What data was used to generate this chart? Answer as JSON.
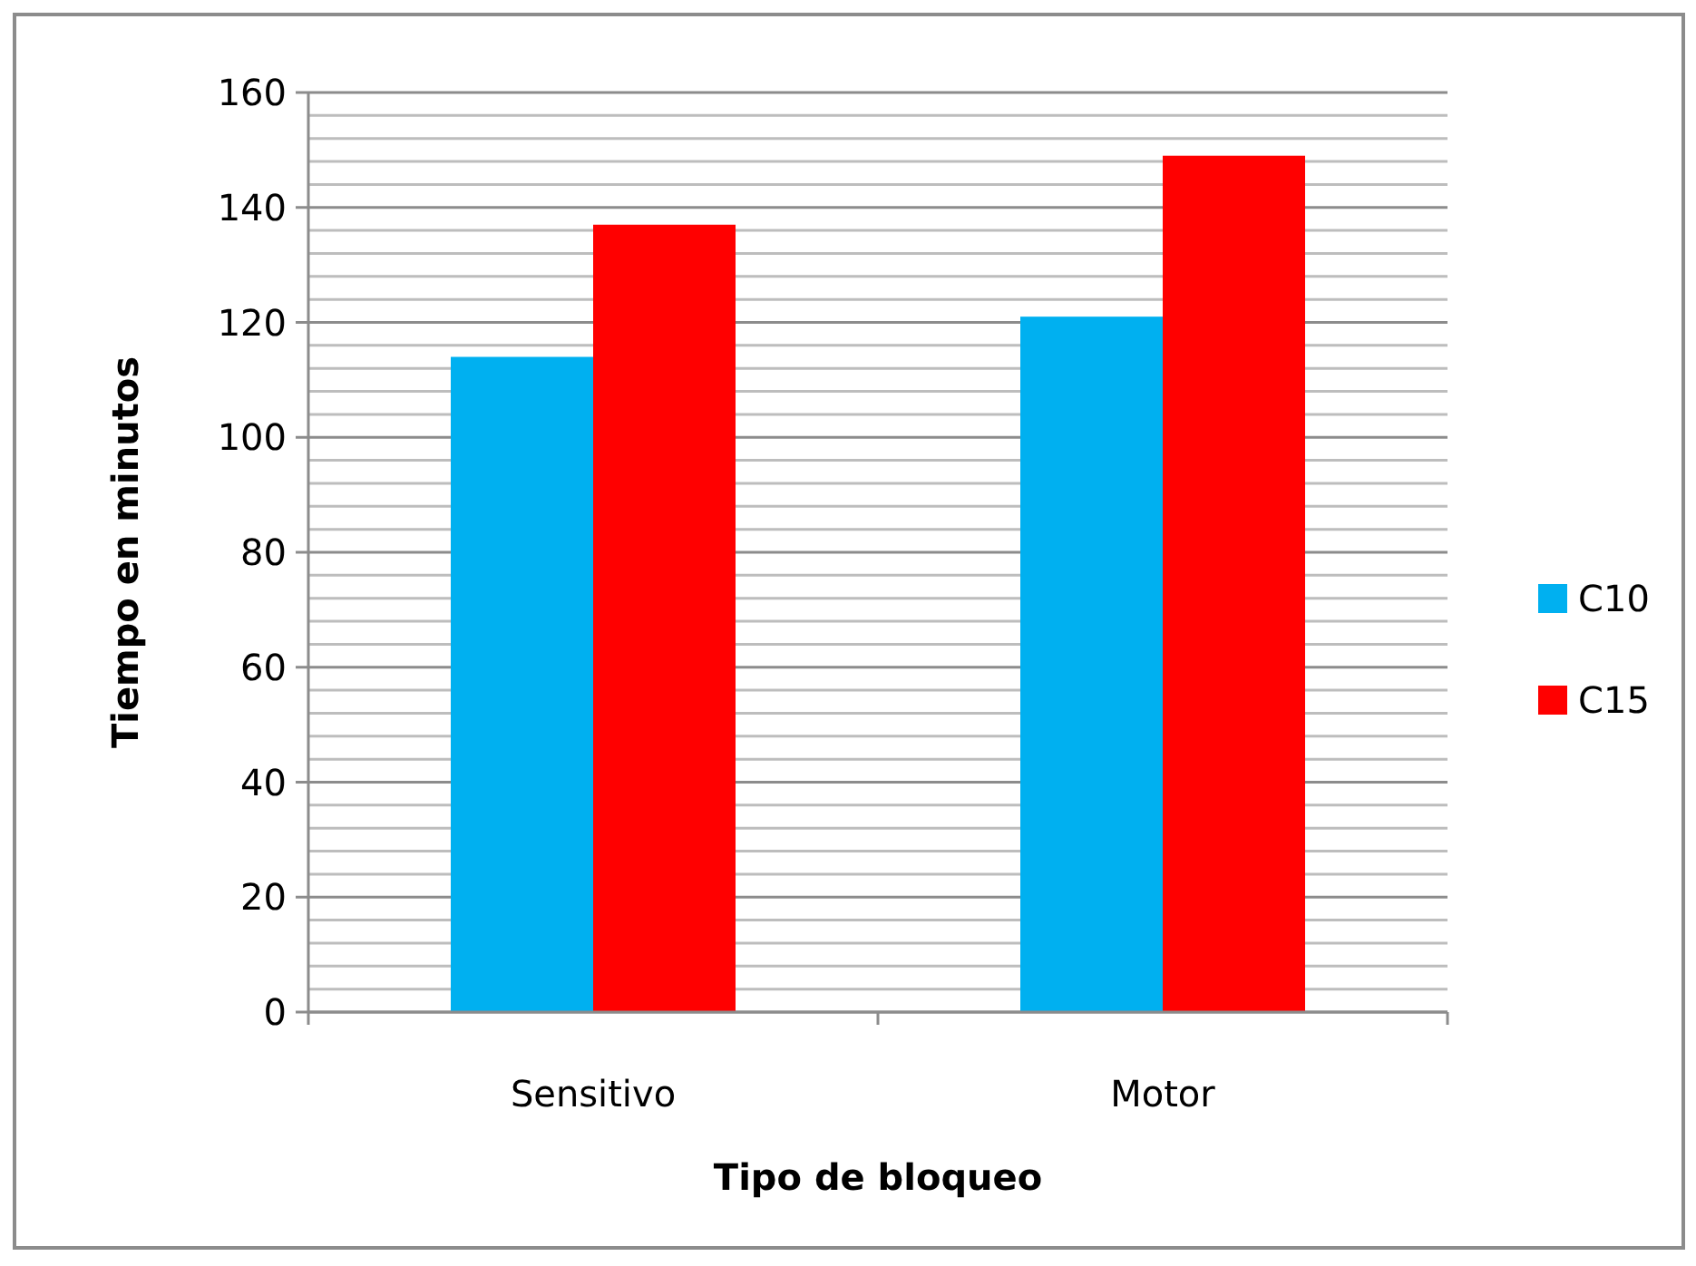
{
  "chart_data": {
    "type": "bar",
    "xlabel": "Tipo de bloqueo",
    "ylabel": "Tiempo en minutos",
    "categories": [
      "Sensitivo",
      "Motor"
    ],
    "series": [
      {
        "name": "C10",
        "color": "#00b0f0",
        "values": [
          114,
          121
        ]
      },
      {
        "name": "C15",
        "color": "#ff0000",
        "values": [
          137,
          149
        ]
      }
    ],
    "ylim": [
      0,
      160
    ],
    "yticks": [
      0,
      {
        "value": 4,
        "label": null
      },
      {
        "value": 8,
        "label": null
      },
      {
        "value": 12,
        "label": null
      },
      {
        "value": 16,
        "label": null
      },
      20,
      {
        "value": 24,
        "label": null
      },
      {
        "value": 28,
        "label": null
      },
      {
        "value": 32,
        "label": null
      },
      {
        "value": 36,
        "label": null
      },
      40,
      {
        "value": 44,
        "label": null
      },
      {
        "value": 48,
        "label": null
      },
      {
        "value": 52,
        "label": null
      },
      {
        "value": 56,
        "label": null
      },
      60,
      {
        "value": 64,
        "label": null
      },
      {
        "value": 68,
        "label": null
      },
      {
        "value": 72,
        "label": null
      },
      {
        "value": 76,
        "label": null
      },
      80,
      {
        "value": 84,
        "label": null
      },
      {
        "value": 88,
        "label": null
      },
      {
        "value": 92,
        "label": null
      },
      {
        "value": 96,
        "label": null
      },
      100,
      {
        "value": 104,
        "label": null
      },
      {
        "value": 108,
        "label": null
      },
      {
        "value": 112,
        "label": null
      },
      {
        "value": 116,
        "label": null
      },
      120,
      {
        "value": 124,
        "label": null
      },
      {
        "value": 128,
        "label": null
      },
      {
        "value": 132,
        "label": null
      },
      {
        "value": 136,
        "label": null
      },
      140,
      {
        "value": 144,
        "label": null
      },
      {
        "value": 148,
        "label": null
      },
      {
        "value": 152,
        "label": null
      },
      {
        "value": 156,
        "label": null
      },
      160
    ],
    "grid": "y",
    "legend": "right"
  }
}
